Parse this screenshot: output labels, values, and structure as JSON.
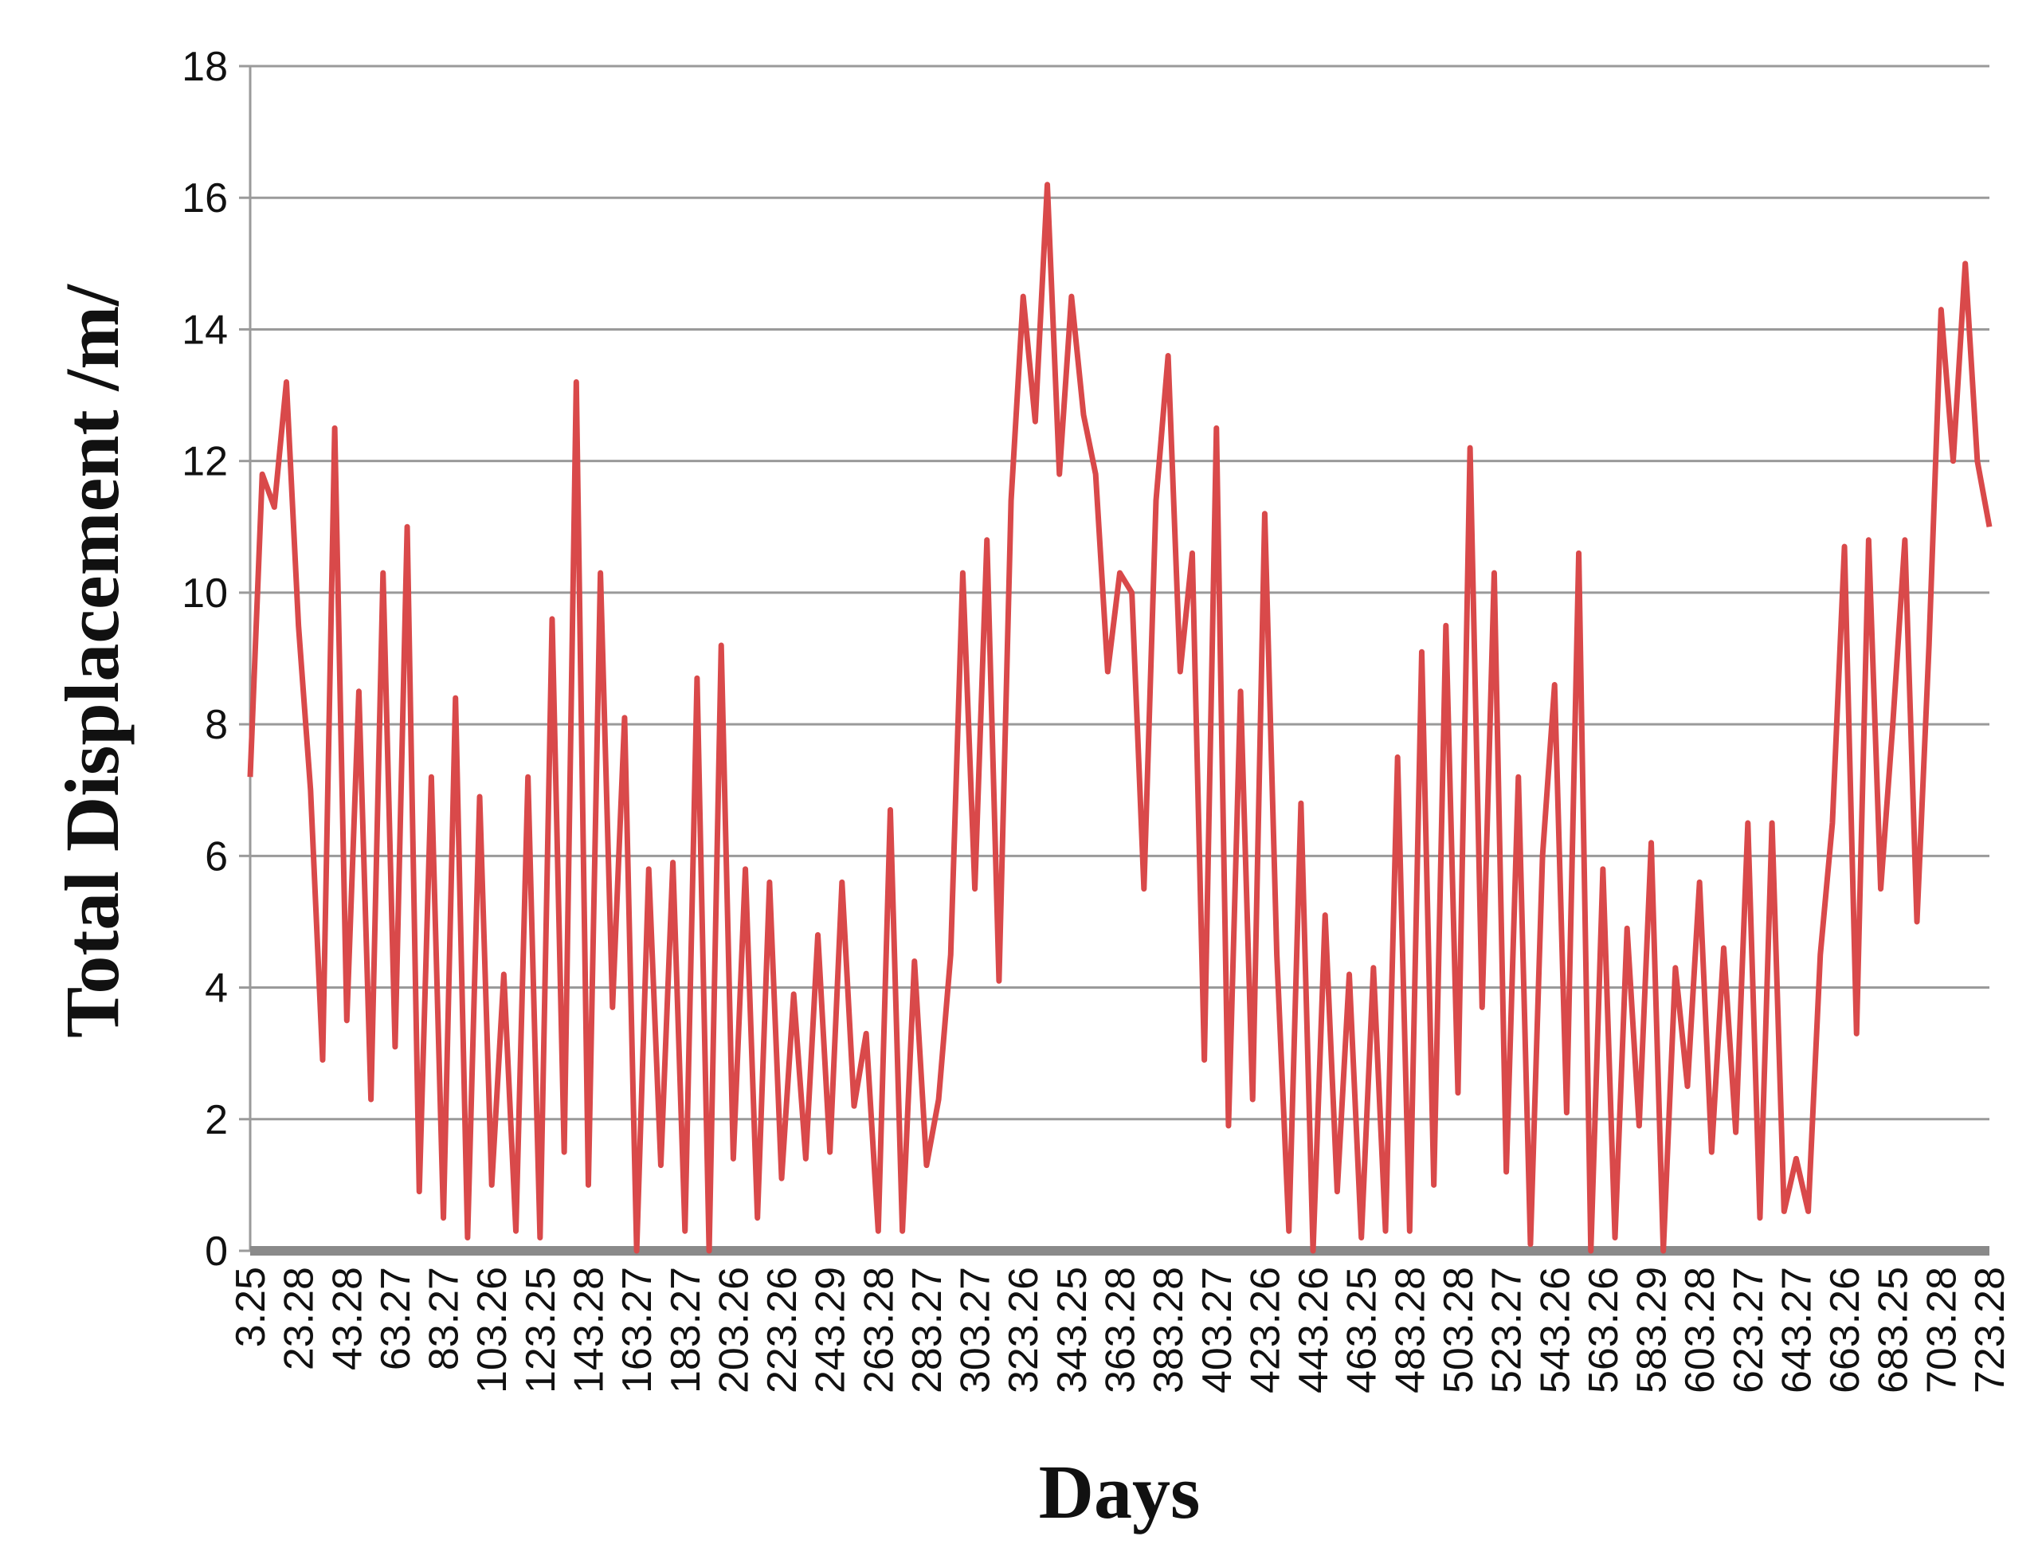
{
  "chart_data": {
    "type": "line",
    "x_label": "Days",
    "y_label": "Total Displacement /m/",
    "categories": [
      "3.25",
      null,
      null,
      null,
      "23.28",
      null,
      null,
      null,
      "43.28",
      null,
      null,
      null,
      "63.27",
      null,
      null,
      null,
      "83.27",
      null,
      null,
      null,
      "103.26",
      null,
      null,
      null,
      "123.25",
      null,
      null,
      null,
      "143.28",
      null,
      null,
      null,
      "163.27",
      null,
      null,
      null,
      "183.27",
      null,
      null,
      null,
      "203.26",
      null,
      null,
      null,
      "223.26",
      null,
      null,
      null,
      "243.29",
      null,
      null,
      null,
      "263.28",
      null,
      null,
      null,
      "283.27",
      null,
      null,
      null,
      "303.27",
      null,
      null,
      null,
      "323.26",
      null,
      null,
      null,
      "343.25",
      null,
      null,
      null,
      "363.28",
      null,
      null,
      null,
      "383.28",
      null,
      null,
      null,
      "403.27",
      null,
      null,
      null,
      "423.26",
      null,
      null,
      null,
      "443.26",
      null,
      null,
      null,
      "463.25",
      null,
      null,
      null,
      "483.28",
      null,
      null,
      null,
      "503.28",
      null,
      null,
      null,
      "523.27",
      null,
      null,
      null,
      "543.26",
      null,
      null,
      null,
      "563.26",
      null,
      null,
      null,
      "583.29",
      null,
      null,
      null,
      "603.28",
      null,
      null,
      null,
      "623.27",
      null,
      null,
      null,
      "643.27",
      null,
      null,
      null,
      "663.26",
      null,
      null,
      null,
      "683.25",
      null,
      null,
      null,
      "703.28",
      null,
      null,
      null,
      "723.28"
    ],
    "values": [
      7.2,
      11.8,
      11.3,
      13.2,
      9.5,
      7.0,
      2.9,
      12.5,
      3.5,
      8.5,
      2.3,
      10.3,
      3.1,
      11.0,
      0.9,
      7.2,
      0.5,
      8.4,
      0.2,
      6.9,
      1.0,
      4.2,
      0.3,
      7.2,
      0.2,
      9.6,
      1.5,
      13.2,
      1.0,
      10.3,
      3.7,
      8.1,
      0.0,
      5.8,
      1.3,
      5.9,
      0.3,
      8.7,
      0.0,
      9.2,
      1.4,
      5.8,
      0.5,
      5.6,
      1.1,
      3.9,
      1.4,
      4.8,
      1.5,
      5.6,
      2.2,
      3.3,
      0.3,
      6.7,
      0.3,
      4.4,
      1.3,
      2.3,
      4.5,
      10.3,
      5.5,
      10.8,
      4.1,
      11.4,
      14.5,
      12.6,
      16.2,
      11.8,
      14.5,
      12.7,
      11.8,
      8.8,
      10.3,
      10.0,
      5.5,
      11.4,
      13.6,
      8.8,
      10.6,
      2.9,
      12.5,
      1.9,
      8.5,
      2.3,
      11.2,
      4.5,
      0.3,
      6.8,
      0.0,
      5.1,
      0.9,
      4.2,
      0.2,
      4.3,
      0.3,
      7.5,
      0.3,
      9.1,
      1.0,
      9.5,
      2.4,
      12.2,
      3.7,
      10.3,
      1.2,
      7.2,
      0.1,
      6.0,
      8.6,
      2.1,
      10.6,
      0.0,
      5.8,
      0.2,
      4.9,
      1.9,
      6.2,
      0.0,
      4.3,
      2.5,
      5.6,
      1.5,
      4.6,
      1.8,
      6.5,
      0.5,
      6.5,
      0.6,
      1.4,
      0.6,
      4.5,
      6.5,
      10.7,
      3.3,
      10.8,
      5.5,
      8.0,
      10.8,
      5.0,
      9.2,
      14.3,
      12.0,
      15.0,
      12.0,
      11.0
    ],
    "color": "#d9494a",
    "ylim": [
      0,
      18
    ],
    "yticks": [
      0,
      2,
      4,
      6,
      8,
      10,
      12,
      14,
      16,
      18
    ],
    "grid": true
  }
}
